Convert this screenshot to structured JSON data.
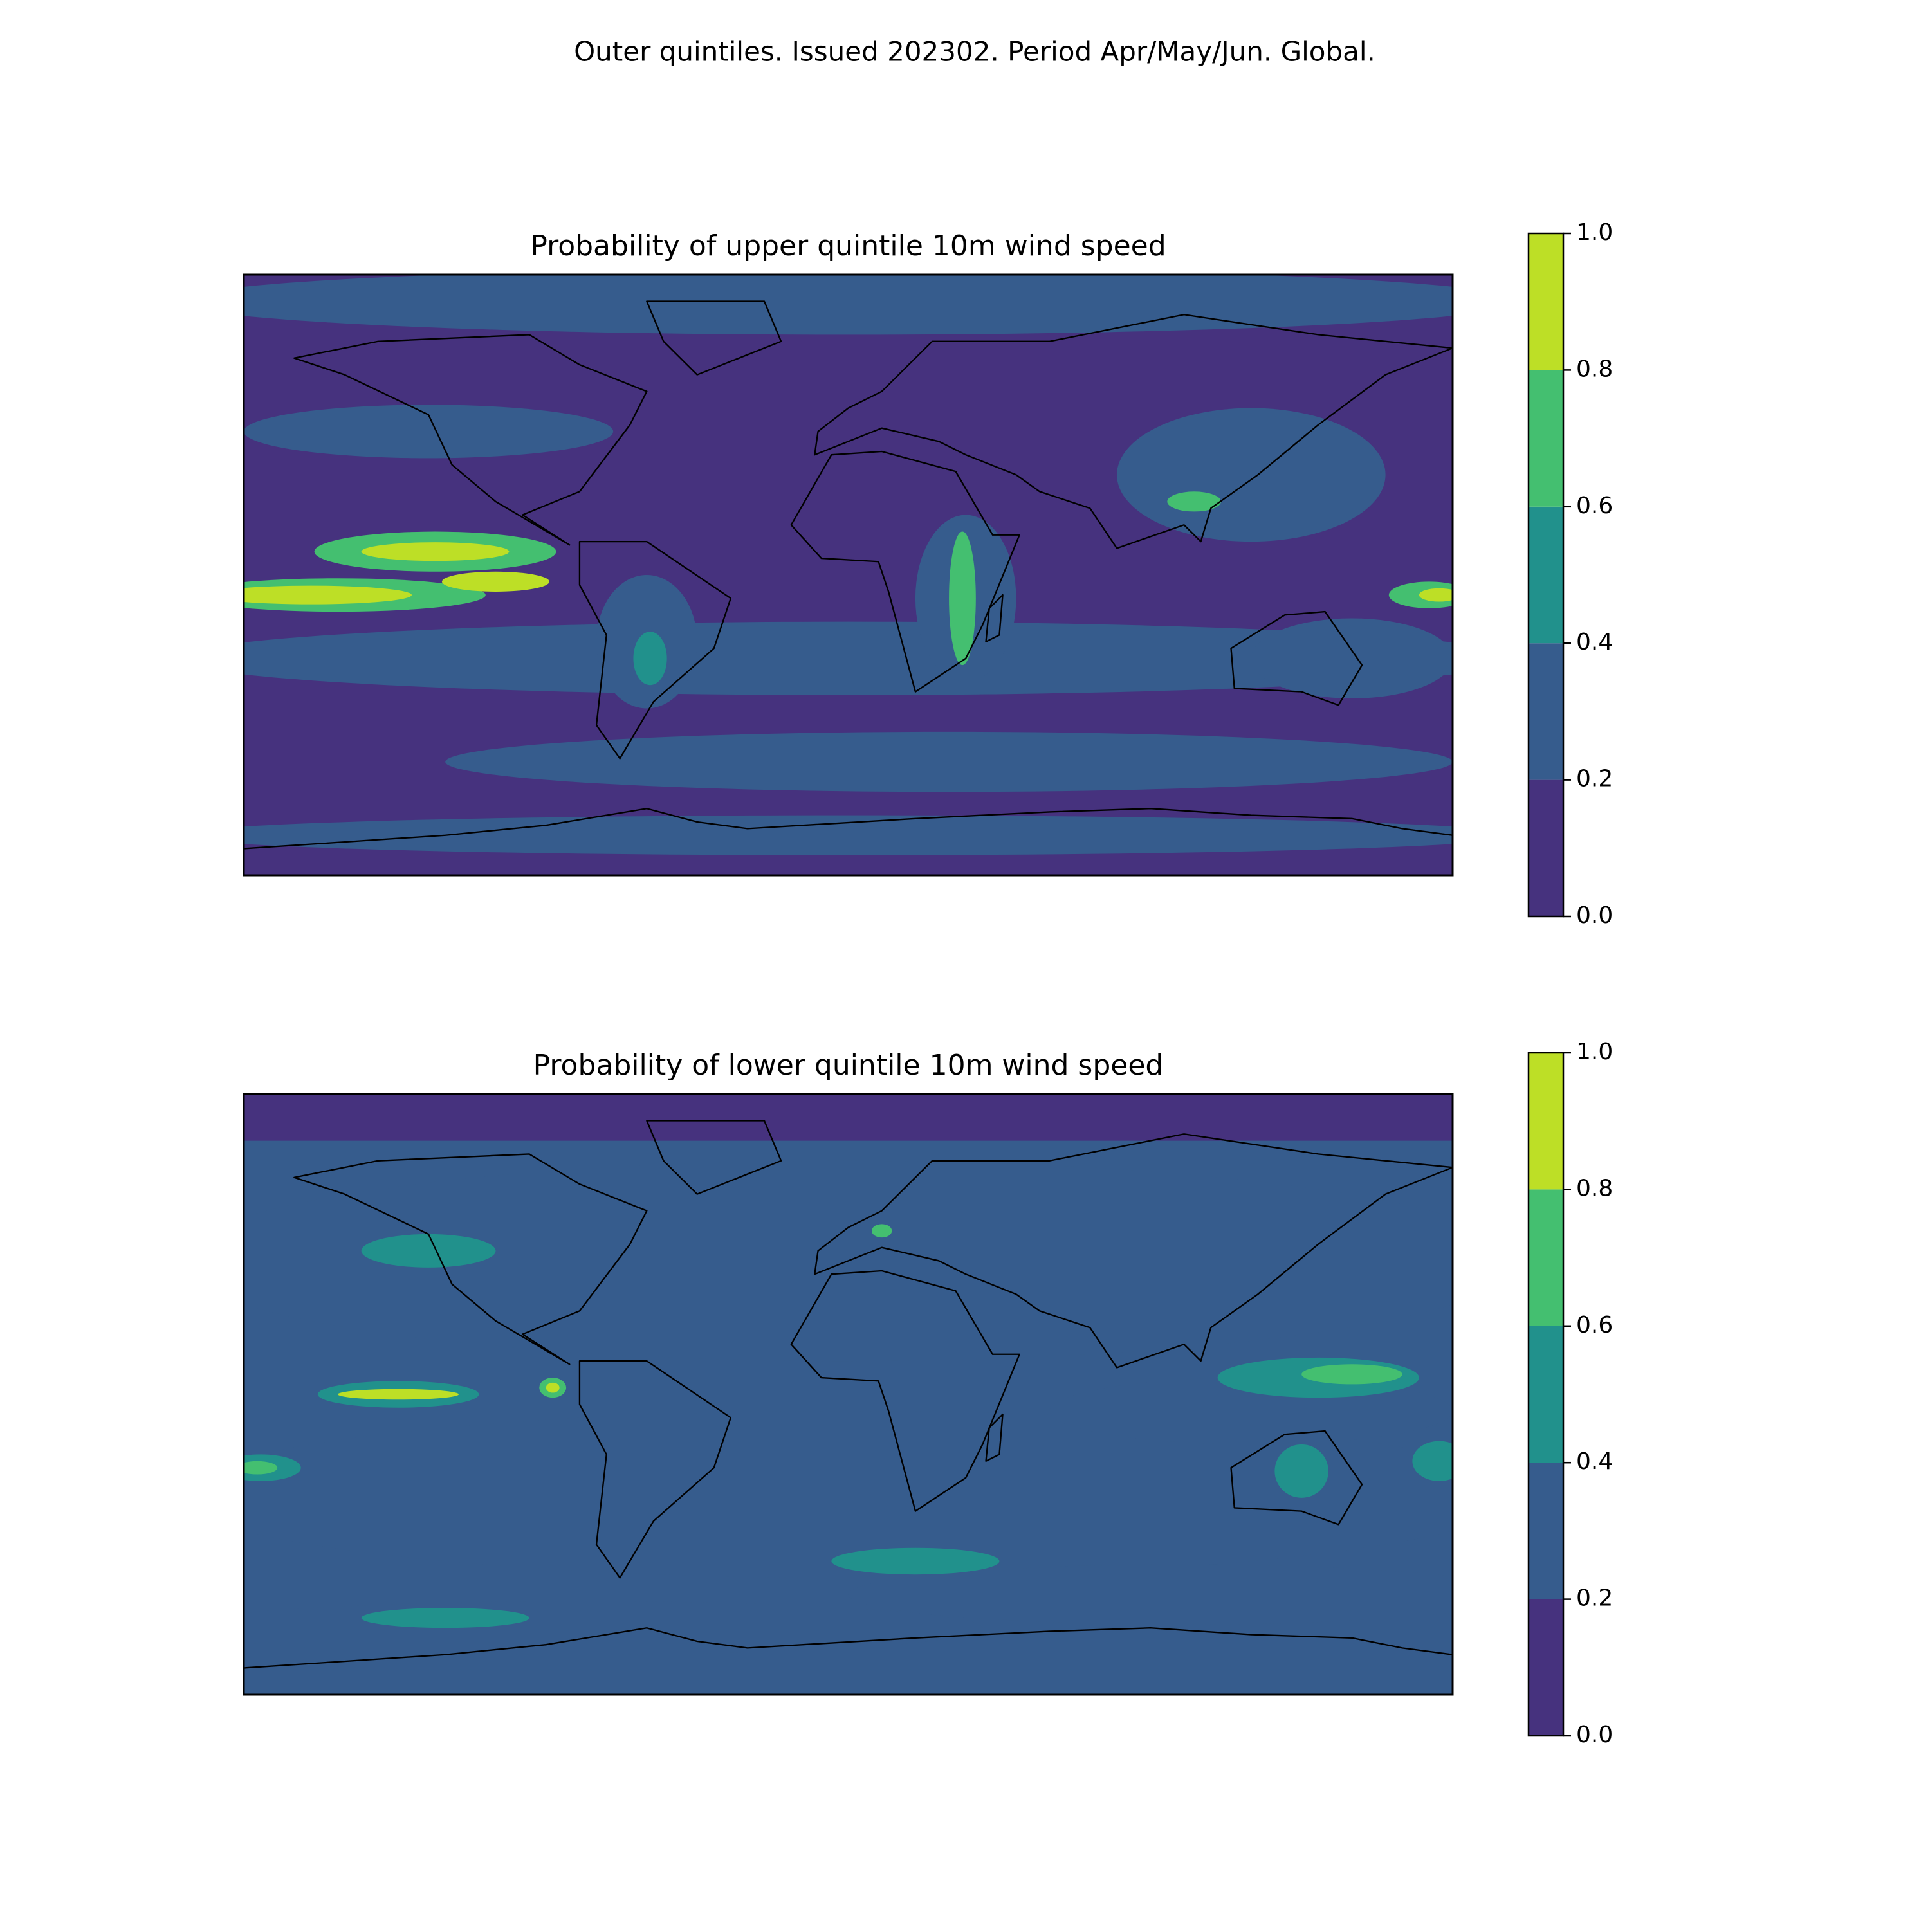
{
  "title": "Outer quintiles. Issued 202302. Period Apr/May/Jun. Global.",
  "chart_data": [
    {
      "type": "contour",
      "title": "Probability of upper quintile 10m wind speed",
      "colors": [
        "#46327e",
        "#365c8d",
        "#21918c",
        "#44bf70",
        "#bddf26"
      ],
      "cticks": [
        {
          "value": 0,
          "label": "0.0"
        },
        0.2,
        0.4,
        0.6,
        0.8,
        {
          "value": 1,
          "label": "1.0"
        }
      ]
    },
    {
      "type": "contour",
      "title": "Probability of lower quintile 10m wind speed",
      "colors": [
        "#46327e",
        "#365c8d",
        "#21918c",
        "#44bf70",
        "#bddf26"
      ],
      "cticks": [
        {
          "value": 0,
          "label": "0.0"
        },
        0.2,
        0.4,
        0.6,
        0.8,
        {
          "value": 1,
          "label": "1.0"
        }
      ]
    }
  ]
}
